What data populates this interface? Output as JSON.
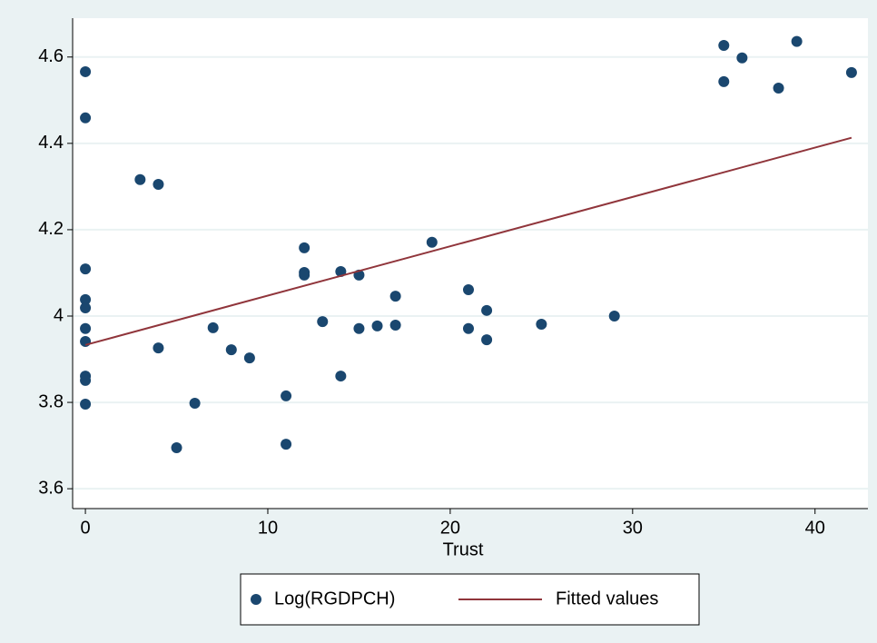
{
  "chart_data": {
    "type": "scatter",
    "xlabel": "Trust",
    "xlim": [
      -0.7,
      42.9
    ],
    "xticks": [
      0,
      10,
      20,
      30,
      40
    ],
    "ylim": [
      3.554,
      4.69
    ],
    "yticks": [
      3.6,
      3.8,
      4,
      4.2,
      4.4,
      4.6
    ],
    "grid": true,
    "legend": "bottom",
    "series": [
      {
        "name": "Log(RGDPCH)",
        "color": "#1a476f",
        "mode": "markers",
        "x": [
          0,
          0,
          0,
          0,
          0,
          0,
          0,
          0,
          0,
          0,
          3,
          4,
          4,
          5,
          6,
          7,
          8,
          9,
          11,
          11,
          12,
          12,
          12,
          13,
          14,
          14,
          15,
          15,
          16,
          17,
          17,
          19,
          21,
          21,
          22,
          22,
          25,
          29,
          35,
          35,
          36,
          38,
          39,
          42
        ],
        "values": [
          4.566,
          4.459,
          4.109,
          4.038,
          4.019,
          3.971,
          3.941,
          3.861,
          3.851,
          3.796,
          4.316,
          4.305,
          3.926,
          3.695,
          3.798,
          3.973,
          3.922,
          3.903,
          3.815,
          3.703,
          4.158,
          4.101,
          4.095,
          3.987,
          4.103,
          3.861,
          4.095,
          3.971,
          3.977,
          4.046,
          3.979,
          4.171,
          4.061,
          3.971,
          4.013,
          3.945,
          3.981,
          4.0,
          4.627,
          4.543,
          4.598,
          4.528,
          4.636,
          4.564
        ]
      },
      {
        "name": "Fitted values",
        "color": "#90353b",
        "mode": "line",
        "x": [
          0,
          42
        ],
        "values": [
          3.933,
          4.413
        ]
      }
    ]
  }
}
